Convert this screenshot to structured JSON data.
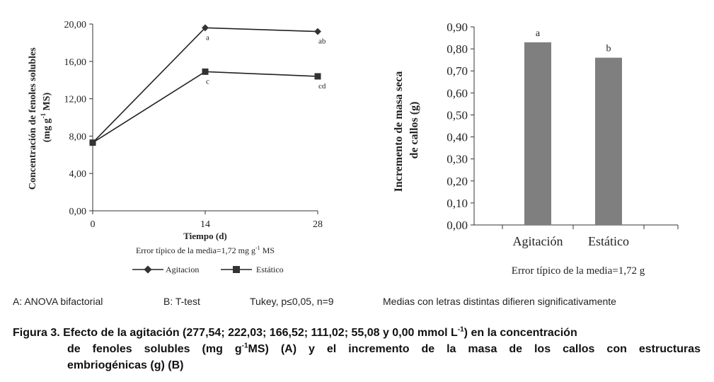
{
  "chart_data": [
    {
      "type": "line",
      "panel": "A",
      "ylabel_line1": "Concentración de fenoles solubles",
      "ylabel_line2_pre": "(mg g",
      "ylabel_line2_sup": "-1",
      "ylabel_line2_post": " MS)",
      "xlabel": "Tiempo (d)",
      "x": [
        0,
        14,
        28
      ],
      "x_ticks": [
        "0",
        "14",
        "28"
      ],
      "xlim": [
        0,
        28
      ],
      "ylim": [
        0,
        20
      ],
      "y_ticks": [
        "0,00",
        "4,00",
        "8,00",
        "12,00",
        "16,00",
        "20,00"
      ],
      "y_tick_values": [
        0,
        4,
        8,
        12,
        16,
        20
      ],
      "series": [
        {
          "name": "Agitacion",
          "marker": "diamond",
          "values": [
            7.3,
            19.6,
            19.2
          ],
          "letters": [
            "",
            "a",
            "ab"
          ]
        },
        {
          "name": "Estático",
          "marker": "square",
          "values": [
            7.3,
            14.9,
            14.4
          ],
          "letters": [
            "",
            "c",
            "cd"
          ]
        }
      ],
      "error_note_pre": "Error típico de la media=1,72  mg g",
      "error_note_sup": "-1",
      "error_note_post": " MS",
      "legend_position": "bottom"
    },
    {
      "type": "bar",
      "panel": "B",
      "ylabel_line1": "Incremento de masa seca",
      "ylabel_line2": "de callos (g)",
      "categories": [
        "Agitación",
        "Estático"
      ],
      "values": [
        0.83,
        0.76
      ],
      "letters": [
        "a",
        "b"
      ],
      "ylim": [
        0,
        0.9
      ],
      "y_ticks": [
        "0,00",
        "0,10",
        "0,20",
        "0,30",
        "0,40",
        "0,50",
        "0,60",
        "0,70",
        "0,80",
        "0,90"
      ],
      "y_tick_values": [
        0,
        0.1,
        0.2,
        0.3,
        0.4,
        0.5,
        0.6,
        0.7,
        0.8,
        0.9
      ],
      "bar_color": "#7f7f7f",
      "error_note": "Error típico de la media=1,72  g"
    }
  ],
  "notes": {
    "a": "A: ANOVA bifactorial",
    "b": "B: T-test",
    "tukey": "Tukey, p≤0,05, n=9",
    "medias": "Medias con letras distintas difieren significativamente"
  },
  "caption": {
    "p1": "Figura 3. Efecto de la agitación (277,54; 222,03; 166,52; 111,02; 55,08 y 0,00 mmol L",
    "p1_sup": "-1",
    "p1_end": ") en la concentración",
    "p2": "de fenoles solubles (mg g",
    "p2_sup": "-1",
    "p2_end": "MS) (A) y el incremento de la masa de los callos con estructuras",
    "p3": "embriogénicas (g) (B)"
  }
}
